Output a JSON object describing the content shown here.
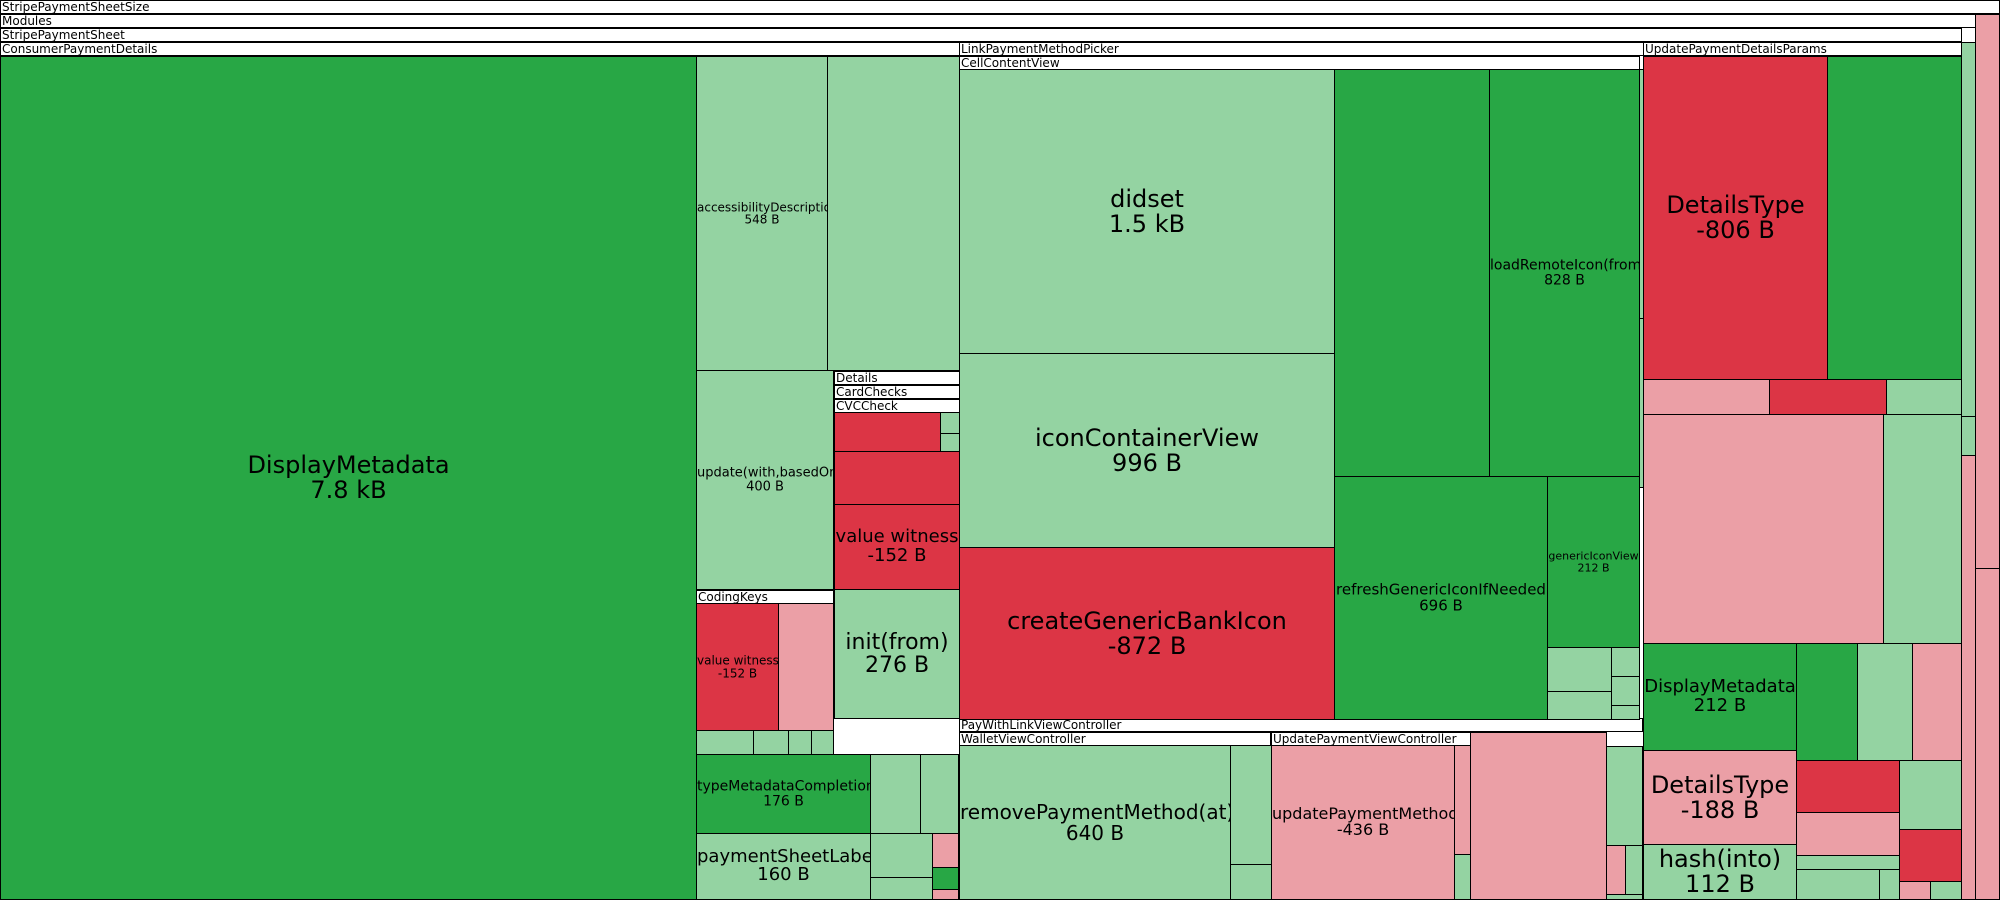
{
  "colors": {
    "increase_dark": "#28a745",
    "increase_light": "#94d3a2",
    "decrease_dark": "#dc3545",
    "decrease_light": "#eb9fa6",
    "border": "#000000",
    "header_bg": "#ffffff"
  },
  "chart_data": {
    "type": "treemap",
    "headers": [
      "StripePaymentSheetSize",
      "Modules",
      "StripePaymentSheet",
      "ConsumerPaymentDetails",
      "LinkPaymentMethodPicker",
      "CellContentView",
      "UpdatePaymentDetailsParams",
      "Details",
      "CardChecks",
      "CVCCheck",
      "CodingKeys",
      "PayWithLinkViewController",
      "WalletViewController",
      "UpdatePaymentViewController"
    ],
    "labeled_leaves": [
      {
        "name": "DisplayMetadata",
        "size": "7.8 kB",
        "change": "increase"
      },
      {
        "name": "accessibilityDescription",
        "size": "548 B",
        "change": "increase"
      },
      {
        "name": "update(with,basedOn)",
        "size": "400 B",
        "change": "increase"
      },
      {
        "name": "value witness",
        "size": "-152 B",
        "change": "decrease"
      },
      {
        "name": "value witness",
        "size": "-152 B",
        "change": "decrease"
      },
      {
        "name": "init(from)",
        "size": "276 B",
        "change": "increase"
      },
      {
        "name": "typeMetadataCompletion",
        "size": "176 B",
        "change": "increase"
      },
      {
        "name": "paymentSheetLabel",
        "size": "160 B",
        "change": "increase"
      },
      {
        "name": "didset",
        "size": "1.5 kB",
        "change": "increase"
      },
      {
        "name": "iconContainerView",
        "size": "996 B",
        "change": "increase"
      },
      {
        "name": "createGenericBankIcon",
        "size": "-872 B",
        "change": "decrease"
      },
      {
        "name": "loadRemoteIcon(from)",
        "size": "828 B",
        "change": "increase"
      },
      {
        "name": "refreshGenericIconIfNeeded",
        "size": "696 B",
        "change": "increase"
      },
      {
        "name": "genericIconView",
        "size": "212 B",
        "change": "increase"
      },
      {
        "name": "removePaymentMethod(at)",
        "size": "640 B",
        "change": "increase"
      },
      {
        "name": "updatePaymentMethod",
        "size": "-436 B",
        "change": "decrease"
      },
      {
        "name": "DetailsType",
        "size": "-806 B",
        "change": "decrease"
      },
      {
        "name": "DisplayMetadata",
        "size": "212 B",
        "change": "increase"
      },
      {
        "name": "DetailsType",
        "size": "-188 B",
        "change": "decrease"
      },
      {
        "name": "hash(into)",
        "size": "112 B",
        "change": "increase"
      }
    ]
  }
}
